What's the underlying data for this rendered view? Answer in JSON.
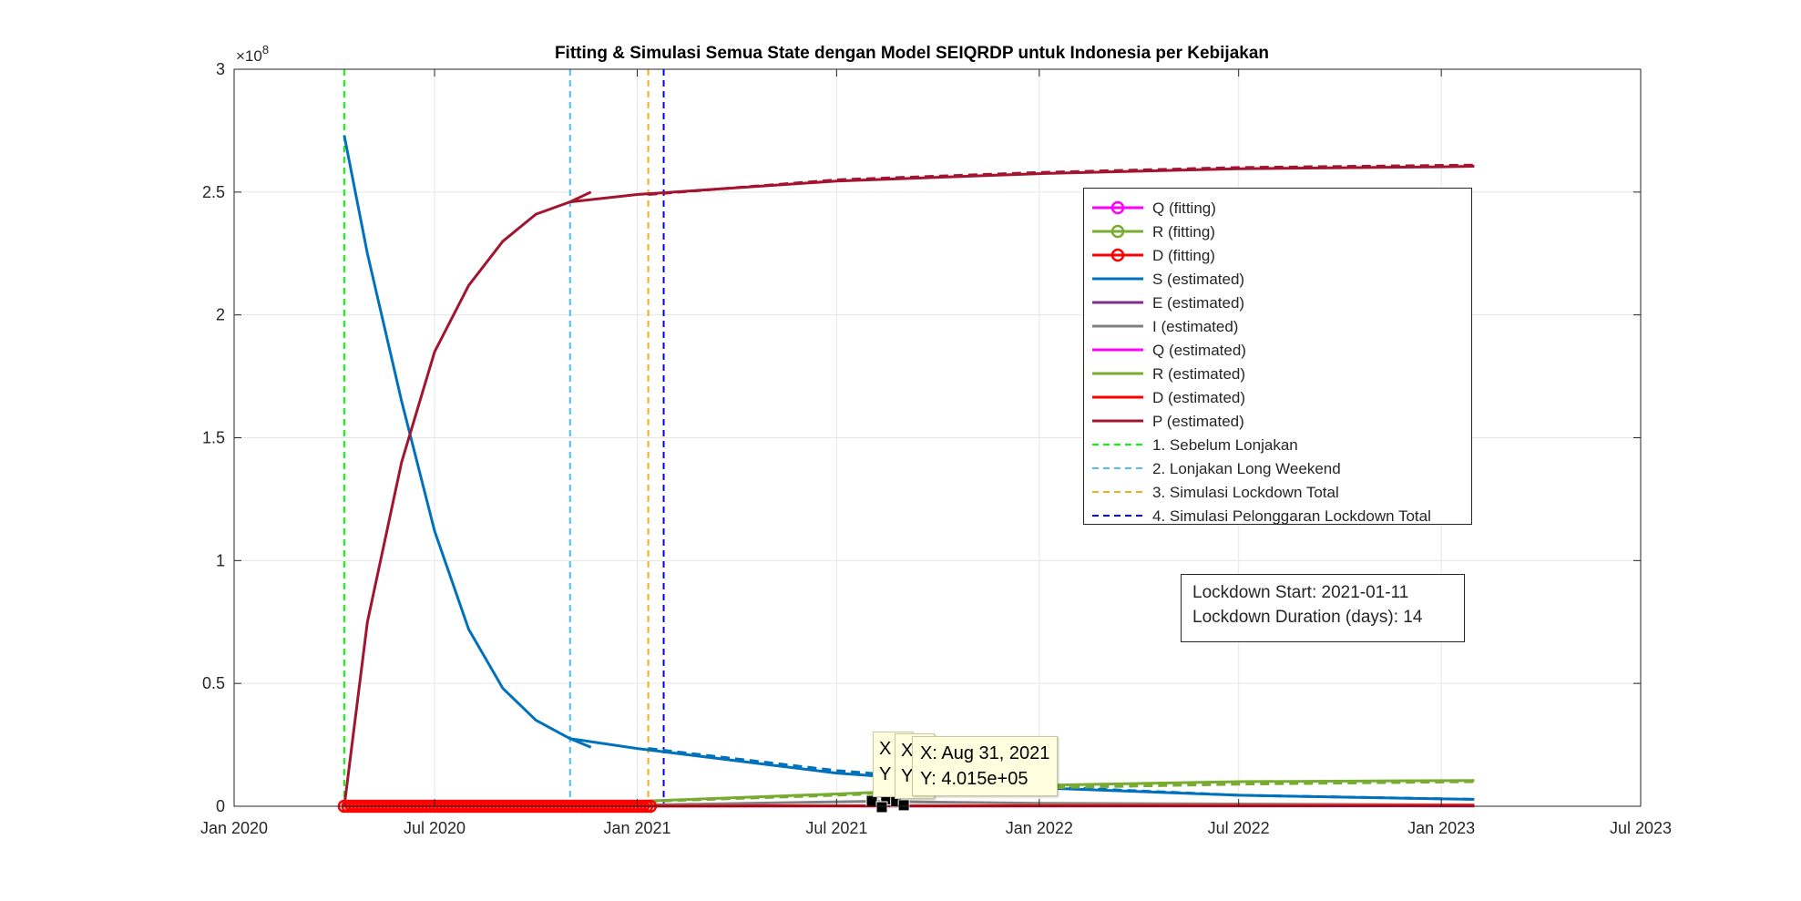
{
  "chart_data": {
    "type": "line",
    "title": "Fitting & Simulasi Semua State dengan Model SEIQRDP untuk Indonesia per Kebijakan",
    "xlabel": "",
    "ylabel": "",
    "y_exponent_label": "×10",
    "y_exponent_power": "8",
    "xlim": [
      "2020-01-01",
      "2023-07-01"
    ],
    "ylim": [
      0,
      3
    ],
    "y_scale_multiplier": 100000000,
    "grid": true,
    "x_ticks": [
      {
        "date": "2020-01-01",
        "label": "Jan 2020"
      },
      {
        "date": "2020-07-01",
        "label": "Jul 2020"
      },
      {
        "date": "2021-01-01",
        "label": "Jan 2021"
      },
      {
        "date": "2021-07-01",
        "label": "Jul 2021"
      },
      {
        "date": "2022-01-01",
        "label": "Jan 2022"
      },
      {
        "date": "2022-07-01",
        "label": "Jul 2022"
      },
      {
        "date": "2023-01-01",
        "label": "Jan 2023"
      },
      {
        "date": "2023-07-01",
        "label": "Jul 2023"
      }
    ],
    "y_ticks": [
      {
        "value": 0,
        "label": "0"
      },
      {
        "value": 0.5,
        "label": "0.5"
      },
      {
        "value": 1,
        "label": "1"
      },
      {
        "value": 1.5,
        "label": "1.5"
      },
      {
        "value": 2,
        "label": "2"
      },
      {
        "value": 2.5,
        "label": "2.5"
      },
      {
        "value": 3,
        "label": "3"
      }
    ],
    "legend_position": "inside right",
    "series": [
      {
        "name": "Q (fitting)",
        "color": "#ff00ff",
        "style": "marker-o",
        "x": [
          "2020-04-10",
          "2021-01-15"
        ],
        "y": [
          0.0,
          0.0
        ]
      },
      {
        "name": "R (fitting)",
        "color": "#77ac30",
        "style": "marker-o",
        "x": [
          "2020-04-10",
          "2021-01-15"
        ],
        "y": [
          0.0,
          0.0
        ]
      },
      {
        "name": "D (fitting)",
        "color": "#ff0000",
        "style": "marker-o",
        "x": [
          "2020-04-10",
          "2021-01-15"
        ],
        "y": [
          0.0,
          0.0
        ]
      },
      {
        "name": "S (estimated)",
        "color": "#0072bd",
        "style": "solid",
        "segments": [
          {
            "x": [
              "2020-04-10",
              "2020-05-01",
              "2020-06-01",
              "2020-07-01",
              "2020-08-01",
              "2020-09-01",
              "2020-10-01",
              "2020-11-01"
            ],
            "y": [
              2.73,
              2.25,
              1.65,
              1.12,
              0.72,
              0.48,
              0.35,
              0.275
            ]
          },
          {
            "x": [
              "2020-11-01",
              "2020-11-20"
            ],
            "y": [
              0.275,
              0.24
            ]
          },
          {
            "x": [
              "2020-11-01",
              "2021-01-01",
              "2021-07-01",
              "2022-01-01",
              "2022-07-01",
              "2023-01-01",
              "2023-01-31"
            ],
            "y": [
              0.275,
              0.235,
              0.135,
              0.075,
              0.045,
              0.03,
              0.028
            ]
          }
        ]
      },
      {
        "name": "E (estimated)",
        "color": "#7e2f8e",
        "style": "solid",
        "x": [
          "2020-04-10",
          "2021-01-01",
          "2023-01-31"
        ],
        "y": [
          0.0,
          0.002,
          0.001
        ]
      },
      {
        "name": "I (estimated)",
        "color": "#808080",
        "style": "solid",
        "x": [
          "2020-04-10",
          "2021-01-01",
          "2021-08-01",
          "2022-01-01",
          "2023-01-31"
        ],
        "y": [
          0.0,
          0.005,
          0.02,
          0.012,
          0.006
        ]
      },
      {
        "name": "Q (estimated)",
        "color": "#ff00ff",
        "style": "solid",
        "x": [
          "2020-04-10",
          "2023-01-31"
        ],
        "y": [
          0.0,
          0.002
        ]
      },
      {
        "name": "R (estimated)",
        "color": "#77ac30",
        "style": "solid",
        "x": [
          "2020-04-10",
          "2020-11-01",
          "2021-01-01",
          "2021-07-01",
          "2022-01-01",
          "2022-07-01",
          "2023-01-31"
        ],
        "y": [
          0.0,
          0.015,
          0.02,
          0.05,
          0.085,
          0.1,
          0.105
        ]
      },
      {
        "name": "D (estimated)",
        "color": "#ff0000",
        "style": "solid",
        "x": [
          "2020-04-10",
          "2023-01-31"
        ],
        "y": [
          0.0,
          0.003
        ]
      },
      {
        "name": "P (estimated)",
        "color": "#a2142f",
        "style": "solid",
        "segments": [
          {
            "x": [
              "2020-04-10",
              "2020-05-01",
              "2020-06-01",
              "2020-07-01",
              "2020-08-01",
              "2020-09-01",
              "2020-10-01",
              "2020-11-01"
            ],
            "y": [
              0.0,
              0.75,
              1.4,
              1.85,
              2.12,
              2.3,
              2.41,
              2.46
            ]
          },
          {
            "x": [
              "2020-11-01",
              "2020-11-20"
            ],
            "y": [
              2.46,
              2.5
            ]
          },
          {
            "x": [
              "2020-11-01",
              "2021-01-01",
              "2021-07-01",
              "2022-01-01",
              "2022-07-01",
              "2023-01-01",
              "2023-01-31"
            ],
            "y": [
              2.46,
              2.49,
              2.545,
              2.575,
              2.595,
              2.603,
              2.605
            ]
          }
        ]
      },
      {
        "name": "1. Sebelum Lonjakan",
        "color": "#00ff00",
        "style": "dashed-vertical",
        "x": "2020-04-10"
      },
      {
        "name": "2. Lonjakan Long Weekend",
        "color": "#4dbeee",
        "style": "dashed-vertical",
        "x": "2020-11-01"
      },
      {
        "name": "3. Simulasi Lockdown Total",
        "color": "#edb120",
        "style": "dashed-vertical",
        "x": "2021-01-11"
      },
      {
        "name": "4. Simulasi Pelonggaran Lockdown Total",
        "color": "#0000ff",
        "style": "dashed-vertical",
        "x": "2021-01-25"
      }
    ],
    "simulated_dashed_overlays": [
      {
        "series": "S (estimated)",
        "x": [
          "2021-01-11",
          "2021-07-01",
          "2022-01-01",
          "2022-07-01",
          "2023-01-31"
        ],
        "y": [
          0.235,
          0.145,
          0.08,
          0.045,
          0.028
        ]
      },
      {
        "series": "R (estimated)",
        "x": [
          "2021-01-11",
          "2021-07-01",
          "2022-01-01",
          "2022-07-01",
          "2023-01-31"
        ],
        "y": [
          0.02,
          0.045,
          0.075,
          0.09,
          0.1
        ]
      },
      {
        "series": "P (estimated)",
        "x": [
          "2021-01-11",
          "2021-07-01",
          "2022-01-01",
          "2022-07-01",
          "2023-01-31"
        ],
        "y": [
          2.49,
          2.55,
          2.58,
          2.6,
          2.61
        ]
      }
    ],
    "annotation": {
      "lockdown_start_label": "Lockdown Start: 2021-01-11",
      "lockdown_duration_label": "Lockdown Duration (days): 14"
    },
    "datatips": [
      {
        "x_label": "X",
        "y_label": "Y",
        "x": "2021-08-15",
        "y": 0.028
      },
      {
        "x_label": "X",
        "y_label": "Y",
        "x": "2021-08-24",
        "y": 0.02
      },
      {
        "x_label": "X: Aug 31, 2021",
        "y_label": "Y: 4.015e+05",
        "x": "2021-08-31",
        "y": 0.004015
      }
    ]
  }
}
